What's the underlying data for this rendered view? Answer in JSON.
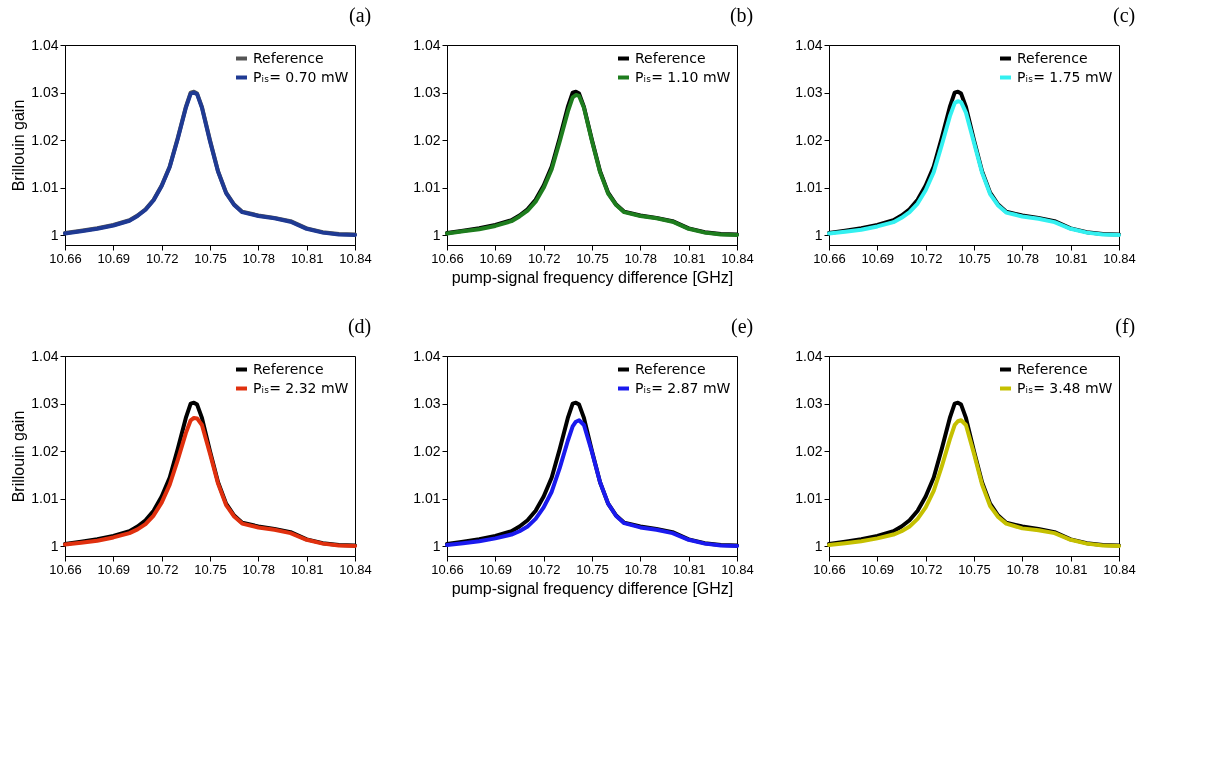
{
  "chart_data": [
    {
      "type": "line",
      "title": "(a)",
      "ylabel": "Brillouin gain",
      "legend": "top right",
      "xlim": [
        10.66,
        10.84
      ],
      "ylim": [
        0.998,
        1.04
      ],
      "xticks": [
        10.66,
        10.69,
        10.72,
        10.75,
        10.78,
        10.81,
        10.84
      ],
      "yticks": [
        1,
        1.01,
        1.02,
        1.03,
        1.04
      ],
      "x": [
        10.66,
        10.67,
        10.68,
        10.69,
        10.7,
        10.705,
        10.71,
        10.715,
        10.72,
        10.725,
        10.73,
        10.735,
        10.738,
        10.74,
        10.742,
        10.745,
        10.75,
        10.755,
        10.76,
        10.765,
        10.77,
        10.78,
        10.79,
        10.8,
        10.81,
        10.82,
        10.83,
        10.84
      ],
      "series": [
        {
          "name": "Reference",
          "color": "#555555",
          "values": [
            1.0005,
            1.001,
            1.0015,
            1.0022,
            1.0032,
            1.0042,
            1.0055,
            1.0075,
            1.0105,
            1.0145,
            1.0205,
            1.027,
            1.03,
            1.0302,
            1.0298,
            1.027,
            1.02,
            1.0135,
            1.009,
            1.0065,
            1.005,
            1.0042,
            1.0037,
            1.003,
            1.0015,
            1.0007,
            1.0003,
            1.0002
          ]
        },
        {
          "name": "Pᵢₛ= 0.70 mW",
          "color": "#1f3a93",
          "values": [
            1.0004,
            1.0009,
            1.0014,
            1.0021,
            1.0031,
            1.0041,
            1.0054,
            1.0074,
            1.0104,
            1.0144,
            1.0203,
            1.0268,
            1.0298,
            1.03,
            1.0297,
            1.0268,
            1.0198,
            1.0134,
            1.0089,
            1.0064,
            1.0049,
            1.0041,
            1.0036,
            1.0029,
            1.0014,
            1.0006,
            1.0002,
            1.0001
          ]
        }
      ]
    },
    {
      "type": "line",
      "title": "(b)",
      "xlabel": "pump-signal frequency difference [GHz]",
      "legend": "top right",
      "xlim": [
        10.66,
        10.84
      ],
      "ylim": [
        0.998,
        1.04
      ],
      "xticks": [
        10.66,
        10.69,
        10.72,
        10.75,
        10.78,
        10.81,
        10.84
      ],
      "yticks": [
        1,
        1.01,
        1.02,
        1.03,
        1.04
      ],
      "x": [
        10.66,
        10.67,
        10.68,
        10.69,
        10.7,
        10.705,
        10.71,
        10.715,
        10.72,
        10.725,
        10.73,
        10.735,
        10.738,
        10.74,
        10.742,
        10.745,
        10.75,
        10.755,
        10.76,
        10.765,
        10.77,
        10.78,
        10.79,
        10.8,
        10.81,
        10.82,
        10.83,
        10.84
      ],
      "series": [
        {
          "name": "Reference",
          "color": "#000000",
          "values": [
            1.0005,
            1.001,
            1.0015,
            1.0022,
            1.0032,
            1.0042,
            1.0055,
            1.0075,
            1.0105,
            1.0145,
            1.0205,
            1.027,
            1.03,
            1.0302,
            1.0298,
            1.027,
            1.02,
            1.0135,
            1.009,
            1.0065,
            1.005,
            1.0042,
            1.0037,
            1.003,
            1.0015,
            1.0007,
            1.0003,
            1.0002
          ]
        },
        {
          "name": "Pᵢₛ= 1.10 mW",
          "color": "#1e7d1e",
          "values": [
            1.0004,
            1.0009,
            1.0013,
            1.002,
            1.003,
            1.004,
            1.0052,
            1.0071,
            1.01,
            1.0139,
            1.0198,
            1.026,
            1.029,
            1.0295,
            1.0293,
            1.0268,
            1.0198,
            1.0133,
            1.0088,
            1.0064,
            1.0049,
            1.0041,
            1.0036,
            1.0029,
            1.0014,
            1.0006,
            1.0002,
            1.0001
          ]
        }
      ]
    },
    {
      "type": "line",
      "title": "(c)",
      "legend": "top right",
      "xlim": [
        10.66,
        10.84
      ],
      "ylim": [
        0.998,
        1.04
      ],
      "xticks": [
        10.66,
        10.69,
        10.72,
        10.75,
        10.78,
        10.81,
        10.84
      ],
      "yticks": [
        1,
        1.01,
        1.02,
        1.03,
        1.04
      ],
      "x": [
        10.66,
        10.67,
        10.68,
        10.69,
        10.7,
        10.705,
        10.71,
        10.715,
        10.72,
        10.725,
        10.73,
        10.735,
        10.738,
        10.74,
        10.742,
        10.745,
        10.75,
        10.755,
        10.76,
        10.765,
        10.77,
        10.78,
        10.79,
        10.8,
        10.81,
        10.82,
        10.83,
        10.84
      ],
      "series": [
        {
          "name": "Reference",
          "color": "#000000",
          "values": [
            1.0005,
            1.001,
            1.0015,
            1.0022,
            1.0032,
            1.0042,
            1.0055,
            1.0075,
            1.0105,
            1.0145,
            1.0205,
            1.027,
            1.03,
            1.0302,
            1.0298,
            1.027,
            1.02,
            1.0135,
            1.009,
            1.0065,
            1.005,
            1.0042,
            1.0037,
            1.003,
            1.0015,
            1.0007,
            1.0003,
            1.0002
          ]
        },
        {
          "name": "Pᵢₛ= 1.75 mW",
          "color": "#33f0f0",
          "values": [
            1.0004,
            1.0008,
            1.0012,
            1.0019,
            1.0028,
            1.0037,
            1.0049,
            1.0067,
            1.0095,
            1.0133,
            1.019,
            1.025,
            1.0278,
            1.0282,
            1.028,
            1.0258,
            1.0195,
            1.0132,
            1.0087,
            1.0063,
            1.0048,
            1.004,
            1.0035,
            1.0028,
            1.0014,
            1.0006,
            1.0002,
            1.0001
          ]
        }
      ]
    },
    {
      "type": "line",
      "title": "(d)",
      "ylabel": "Brillouin gain",
      "legend": "top right",
      "xlim": [
        10.66,
        10.84
      ],
      "ylim": [
        0.998,
        1.04
      ],
      "xticks": [
        10.66,
        10.69,
        10.72,
        10.75,
        10.78,
        10.81,
        10.84
      ],
      "yticks": [
        1,
        1.01,
        1.02,
        1.03,
        1.04
      ],
      "x": [
        10.66,
        10.67,
        10.68,
        10.69,
        10.7,
        10.705,
        10.71,
        10.715,
        10.72,
        10.725,
        10.73,
        10.735,
        10.738,
        10.74,
        10.742,
        10.745,
        10.75,
        10.755,
        10.76,
        10.765,
        10.77,
        10.78,
        10.79,
        10.8,
        10.81,
        10.82,
        10.83,
        10.84
      ],
      "series": [
        {
          "name": "Reference",
          "color": "#000000",
          "values": [
            1.0005,
            1.001,
            1.0015,
            1.0022,
            1.0032,
            1.0042,
            1.0055,
            1.0075,
            1.0105,
            1.0145,
            1.0205,
            1.027,
            1.03,
            1.0302,
            1.0298,
            1.027,
            1.02,
            1.0135,
            1.009,
            1.0065,
            1.005,
            1.0042,
            1.0037,
            1.003,
            1.0015,
            1.0007,
            1.0003,
            1.0002
          ]
        },
        {
          "name": "Pᵢₛ= 2.32 mW",
          "color": "#e0300e",
          "values": [
            1.0004,
            1.0008,
            1.0012,
            1.0019,
            1.0028,
            1.0036,
            1.0047,
            1.0065,
            1.0092,
            1.013,
            1.0182,
            1.0238,
            1.0265,
            1.027,
            1.0269,
            1.0255,
            1.0195,
            1.0132,
            1.0087,
            1.0063,
            1.0048,
            1.004,
            1.0035,
            1.0028,
            1.0014,
            1.0006,
            1.0002,
            1.0001
          ]
        }
      ]
    },
    {
      "type": "line",
      "title": "(e)",
      "xlabel": "pump-signal frequency difference [GHz]",
      "legend": "top right",
      "xlim": [
        10.66,
        10.84
      ],
      "ylim": [
        0.998,
        1.04
      ],
      "xticks": [
        10.66,
        10.69,
        10.72,
        10.75,
        10.78,
        10.81,
        10.84
      ],
      "yticks": [
        1,
        1.01,
        1.02,
        1.03,
        1.04
      ],
      "x": [
        10.66,
        10.67,
        10.68,
        10.69,
        10.7,
        10.705,
        10.71,
        10.715,
        10.72,
        10.725,
        10.73,
        10.735,
        10.738,
        10.74,
        10.742,
        10.745,
        10.75,
        10.755,
        10.76,
        10.765,
        10.77,
        10.78,
        10.79,
        10.8,
        10.81,
        10.82,
        10.83,
        10.84
      ],
      "series": [
        {
          "name": "Reference",
          "color": "#000000",
          "values": [
            1.0005,
            1.001,
            1.0015,
            1.0022,
            1.0032,
            1.0042,
            1.0055,
            1.0075,
            1.0105,
            1.0145,
            1.0205,
            1.027,
            1.03,
            1.0302,
            1.0298,
            1.027,
            1.02,
            1.0135,
            1.009,
            1.0065,
            1.005,
            1.0042,
            1.0037,
            1.003,
            1.0015,
            1.0007,
            1.0003,
            1.0002
          ]
        },
        {
          "name": "Pᵢₛ= 2.87 mW",
          "color": "#1a1aee",
          "values": [
            1.0003,
            1.0007,
            1.0011,
            1.0017,
            1.0025,
            1.0032,
            1.0042,
            1.0058,
            1.0082,
            1.0115,
            1.0165,
            1.0222,
            1.0252,
            1.0262,
            1.0265,
            1.0255,
            1.0198,
            1.0135,
            1.009,
            1.0064,
            1.0049,
            1.004,
            1.0035,
            1.0028,
            1.0014,
            1.0006,
            1.0002,
            1.0001
          ]
        }
      ]
    },
    {
      "type": "line",
      "title": "(f)",
      "legend": "top right",
      "xlim": [
        10.66,
        10.84
      ],
      "ylim": [
        0.998,
        1.04
      ],
      "xticks": [
        10.66,
        10.69,
        10.72,
        10.75,
        10.78,
        10.81,
        10.84
      ],
      "yticks": [
        1,
        1.01,
        1.02,
        1.03,
        1.04
      ],
      "x": [
        10.66,
        10.67,
        10.68,
        10.69,
        10.7,
        10.705,
        10.71,
        10.715,
        10.72,
        10.725,
        10.73,
        10.735,
        10.738,
        10.74,
        10.742,
        10.745,
        10.75,
        10.755,
        10.76,
        10.765,
        10.77,
        10.78,
        10.79,
        10.8,
        10.81,
        10.82,
        10.83,
        10.84
      ],
      "series": [
        {
          "name": "Reference",
          "color": "#000000",
          "values": [
            1.0005,
            1.001,
            1.0015,
            1.0022,
            1.0032,
            1.0042,
            1.0055,
            1.0075,
            1.0105,
            1.0145,
            1.0205,
            1.027,
            1.03,
            1.0302,
            1.0298,
            1.027,
            1.02,
            1.0135,
            1.009,
            1.0065,
            1.005,
            1.0042,
            1.0037,
            1.003,
            1.0015,
            1.0007,
            1.0003,
            1.0002
          ]
        },
        {
          "name": "Pᵢₛ= 3.48 mW",
          "color": "#c5c000",
          "values": [
            1.0003,
            1.0007,
            1.0011,
            1.0017,
            1.0025,
            1.0032,
            1.0042,
            1.0058,
            1.0082,
            1.0117,
            1.0168,
            1.0225,
            1.0255,
            1.0263,
            1.0265,
            1.0255,
            1.0195,
            1.013,
            1.0085,
            1.0062,
            1.0048,
            1.0038,
            1.0034,
            1.0028,
            1.0014,
            1.0006,
            1.0002,
            1.0001
          ]
        }
      ]
    }
  ]
}
